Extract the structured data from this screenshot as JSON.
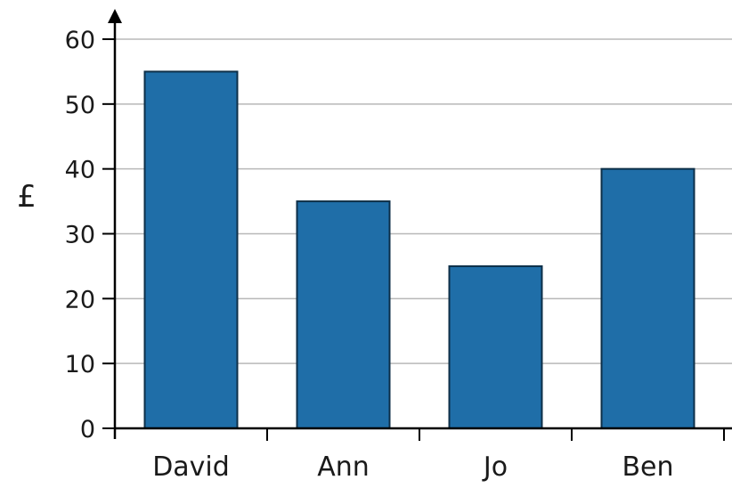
{
  "chart_data": {
    "type": "bar",
    "categories": [
      "David",
      "Ann",
      "Jo",
      "Ben"
    ],
    "values": [
      55,
      35,
      25,
      40
    ],
    "xlabel": "",
    "ylabel": "£",
    "ylim": [
      0,
      60
    ],
    "yticks": [
      0,
      10,
      20,
      30,
      40,
      50,
      60
    ],
    "grid": true,
    "colors": {
      "bar": "#1f6ea8",
      "bar_edge": "#0d2f48",
      "axis": "#000000",
      "grid": "#b8b8b8"
    }
  }
}
